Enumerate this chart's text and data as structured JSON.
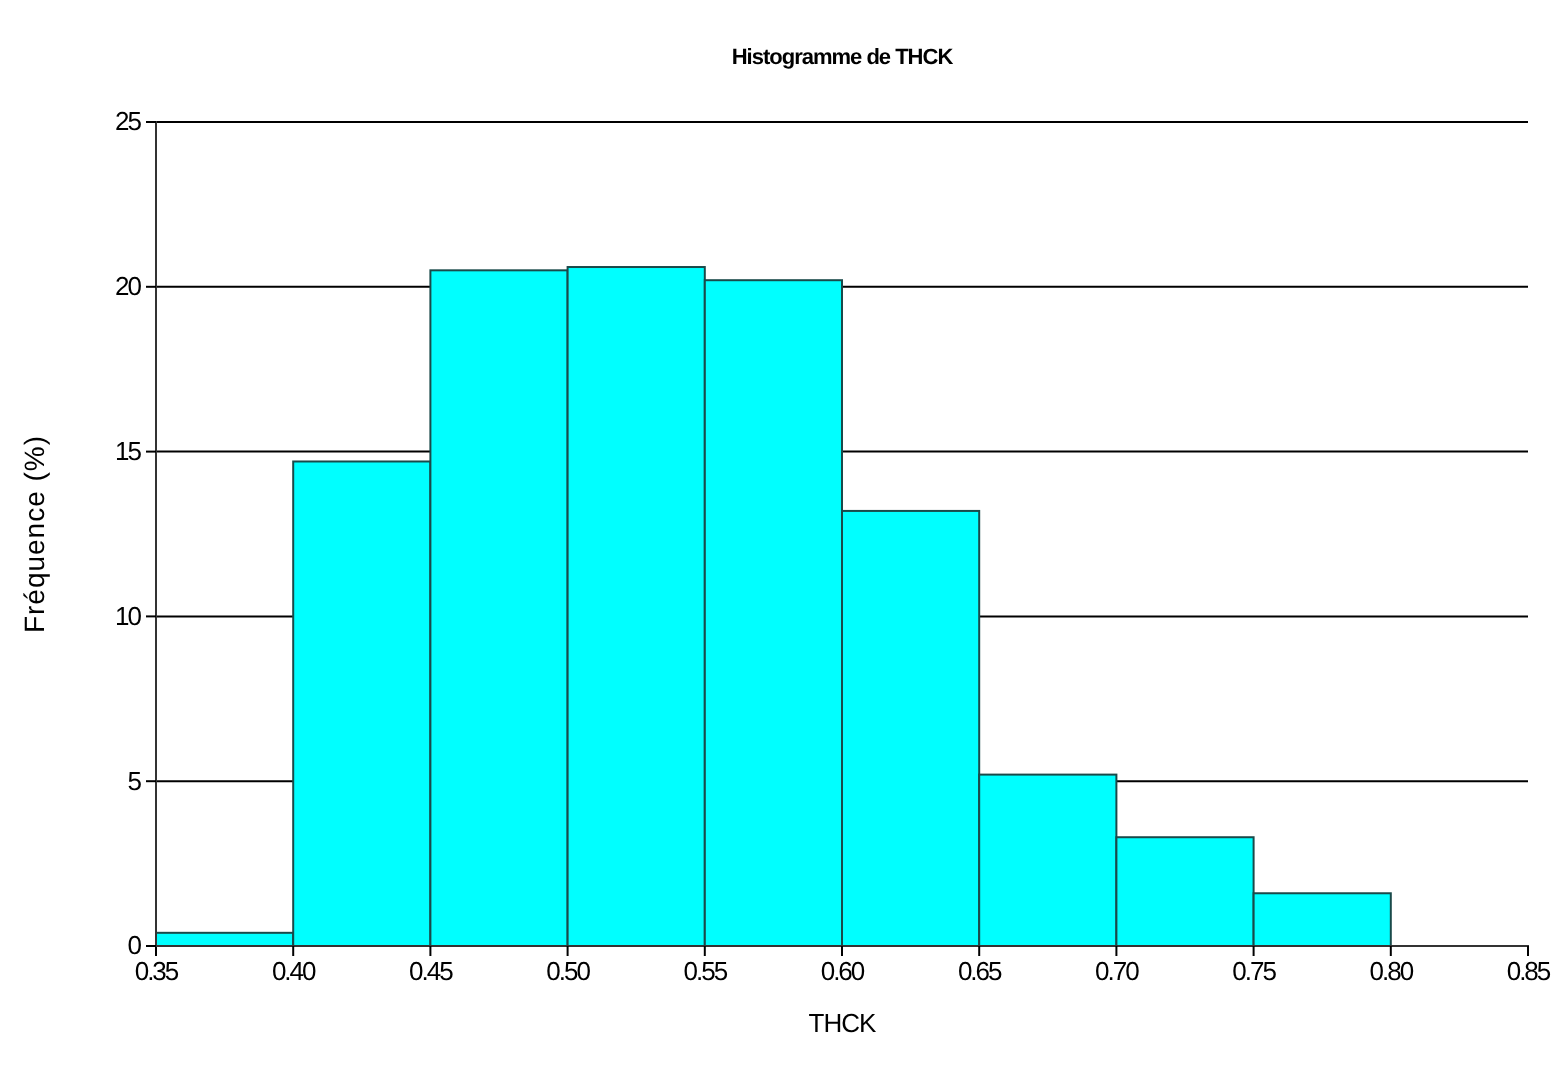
{
  "chart_data": {
    "type": "histogram",
    "title": "Histogramme de THCK",
    "xlabel": "THCK",
    "ylabel": "Fréquence (%)",
    "bins": [
      0.35,
      0.4,
      0.45,
      0.5,
      0.55,
      0.6,
      0.65,
      0.7,
      0.75,
      0.8,
      0.85
    ],
    "values": [
      0.4,
      14.7,
      20.5,
      20.6,
      20.2,
      13.2,
      5.2,
      3.3,
      1.6,
      0
    ],
    "color": "#00ffff",
    "xlim": [
      0.35,
      0.85
    ],
    "xticks": [
      {
        "value": 0.35,
        "label": "0.35"
      },
      {
        "value": 0.4,
        "label": "0.40"
      },
      {
        "value": 0.45,
        "label": "0.45"
      },
      {
        "value": 0.5,
        "label": "0.50"
      },
      {
        "value": 0.55,
        "label": "0.55"
      },
      {
        "value": 0.6,
        "label": "0.60"
      },
      {
        "value": 0.65,
        "label": "0.65"
      },
      {
        "value": 0.7,
        "label": "0.70"
      },
      {
        "value": 0.75,
        "label": "0.75"
      },
      {
        "value": 0.8,
        "label": "0.80"
      },
      {
        "value": 0.85,
        "label": "0.85"
      }
    ],
    "ylim": [
      0,
      25
    ],
    "yticks": [
      0,
      5,
      10,
      15,
      20,
      25
    ],
    "grid": "y"
  }
}
